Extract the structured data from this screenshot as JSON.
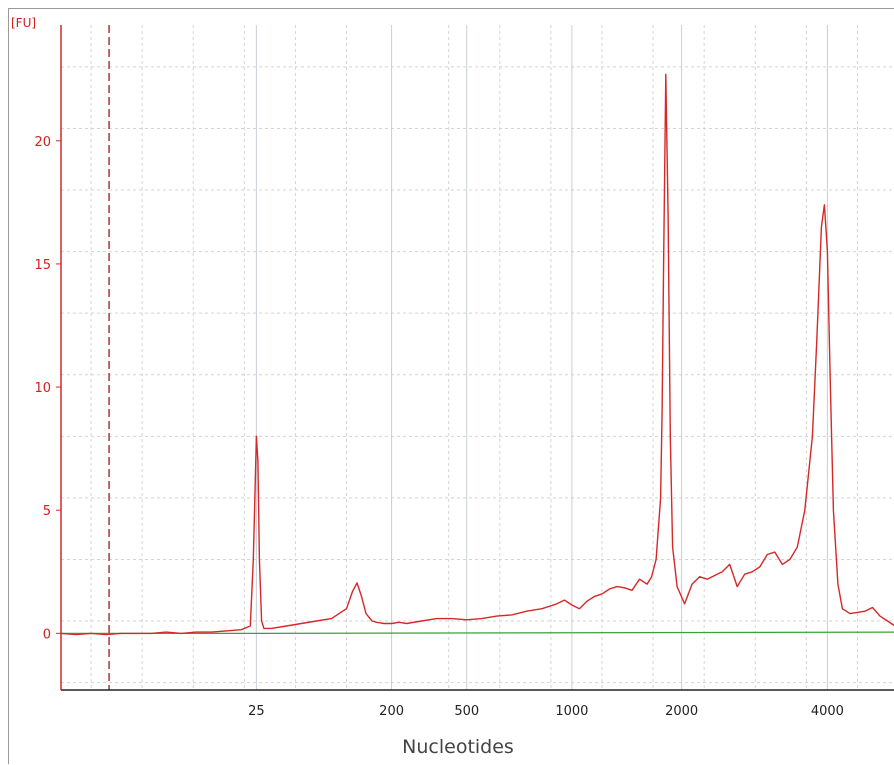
{
  "chart_data": {
    "type": "line",
    "ylabel": "[FU]",
    "xlabel": "Nucleotides",
    "ylim": [
      -2.3,
      24.7
    ],
    "y_ticks": [
      0,
      5,
      10,
      15,
      20
    ],
    "x_tick_labels": [
      "25",
      "200",
      "500",
      "1000",
      "2000",
      "4000"
    ],
    "x_tick_positions_seconds": [
      20,
      29,
      34,
      41,
      48.3,
      58
    ],
    "x_range_seconds": [
      7,
      62.5
    ],
    "marker_line_seconds": 10.2,
    "grid": true,
    "series": [
      {
        "color": "#d62828",
        "x": [
          7.0,
          8.0,
          9.0,
          10.0,
          11.0,
          12.0,
          13.0,
          14.0,
          15.0,
          16.0,
          17.0,
          18.0,
          19.0,
          19.6,
          19.8,
          20.0,
          20.1,
          20.2,
          20.35,
          20.5,
          20.7,
          21.0,
          22.0,
          23.0,
          24.0,
          25.0,
          26.0,
          26.4,
          26.7,
          27.0,
          27.3,
          27.7,
          28.0,
          28.5,
          29.0,
          29.5,
          30.0,
          31.0,
          32.0,
          33.0,
          34.0,
          35.0,
          36.0,
          37.0,
          38.0,
          39.0,
          39.5,
          40.0,
          40.5,
          41.0,
          41.5,
          42.0,
          42.5,
          43.0,
          43.5,
          44.0,
          44.5,
          45.0,
          45.5,
          46.0,
          46.3,
          46.6,
          46.9,
          47.0,
          47.1,
          47.25,
          47.4,
          47.55,
          47.7,
          48.0,
          48.5,
          49.0,
          49.5,
          50.0,
          50.5,
          51.0,
          51.5,
          52.0,
          52.5,
          53.0,
          53.5,
          54.0,
          54.5,
          55.0,
          55.5,
          56.0,
          56.5,
          57.0,
          57.3,
          57.6,
          57.8,
          58.0,
          58.2,
          58.4,
          58.7,
          59.0,
          59.5,
          60.0,
          60.5,
          61.0,
          61.5,
          62.0,
          62.5
        ],
        "y": [
          0.0,
          -0.05,
          0.0,
          -0.05,
          0.0,
          0.0,
          0.0,
          0.05,
          0.0,
          0.05,
          0.05,
          0.1,
          0.15,
          0.3,
          3.0,
          8.0,
          7.0,
          3.0,
          0.5,
          0.2,
          0.2,
          0.2,
          0.3,
          0.4,
          0.5,
          0.6,
          1.0,
          1.7,
          2.05,
          1.5,
          0.8,
          0.5,
          0.45,
          0.4,
          0.4,
          0.45,
          0.4,
          0.5,
          0.6,
          0.6,
          0.55,
          0.6,
          0.7,
          0.75,
          0.9,
          1.0,
          1.1,
          1.2,
          1.35,
          1.15,
          1.0,
          1.3,
          1.5,
          1.6,
          1.8,
          1.9,
          1.85,
          1.75,
          2.2,
          2.0,
          2.3,
          3.0,
          5.5,
          9.0,
          15.0,
          22.7,
          17.0,
          8.0,
          3.5,
          1.9,
          1.2,
          2.0,
          2.3,
          2.2,
          2.35,
          2.5,
          2.8,
          1.9,
          2.4,
          2.5,
          2.7,
          3.2,
          3.3,
          2.8,
          3.0,
          3.5,
          5.0,
          8.0,
          12.0,
          16.5,
          17.4,
          15.5,
          10.0,
          5.0,
          2.0,
          1.0,
          0.8,
          0.85,
          0.9,
          1.05,
          0.7,
          0.5,
          0.3
        ]
      },
      {
        "color": "#3aa13a",
        "x": [
          7.0,
          20.0,
          62.5
        ],
        "y": [
          0.0,
          0.0,
          0.05
        ]
      }
    ]
  }
}
